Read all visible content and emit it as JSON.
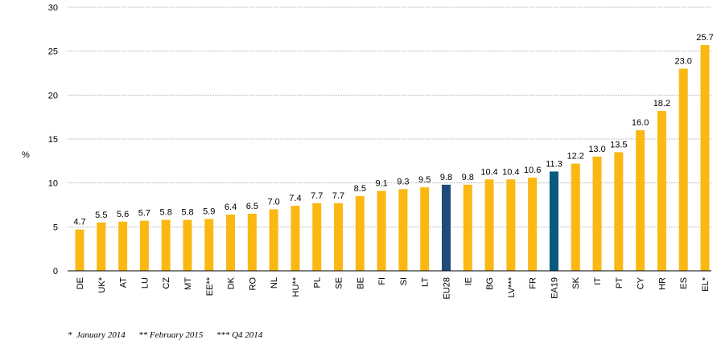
{
  "chart_data": {
    "type": "bar",
    "ylabel": "%",
    "ylim": [
      0,
      30
    ],
    "yticks": [
      0,
      5,
      10,
      15,
      20,
      25,
      30
    ],
    "grid": true,
    "categories": [
      "DE",
      "UK*",
      "AT",
      "LU",
      "CZ",
      "MT",
      "EE**",
      "DK",
      "RO",
      "NL",
      "HU**",
      "PL",
      "SE",
      "BE",
      "FI",
      "SI",
      "LT",
      "EU28",
      "IE",
      "BG",
      "LV***",
      "FR",
      "EA19",
      "SK",
      "IT",
      "PT",
      "CY",
      "HR",
      "ES",
      "EL*"
    ],
    "values": [
      4.7,
      5.5,
      5.6,
      5.7,
      5.8,
      5.8,
      5.9,
      6.4,
      6.5,
      7.0,
      7.4,
      7.7,
      7.7,
      8.5,
      9.1,
      9.3,
      9.5,
      9.8,
      9.8,
      10.4,
      10.4,
      10.6,
      11.3,
      12.2,
      13.0,
      13.5,
      16.0,
      18.2,
      23.0,
      25.7
    ],
    "value_labels": [
      "4.7",
      "5.5",
      "5.6",
      "5.7",
      "5.8",
      "5.8",
      "5.9",
      "6.4",
      "6.5",
      "7.0",
      "7.4",
      "7.7",
      "7.7",
      "8.5",
      "9.1",
      "9.3",
      "9.5",
      "9.8",
      "9.8",
      "10.4",
      "10.4",
      "10.6",
      "11.3",
      "12.2",
      "13.0",
      "13.5",
      "16.0",
      "18.2",
      "23.0",
      "25.7"
    ],
    "colors": {
      "default": "#fbb813",
      "EU28": "#1f4a7a",
      "EA19": "#0a5a7e",
      "grid": "#c0c0c0",
      "axis": "#000000"
    }
  },
  "footnote": "*  January 2014      ** February 2015      *** Q4 2014"
}
